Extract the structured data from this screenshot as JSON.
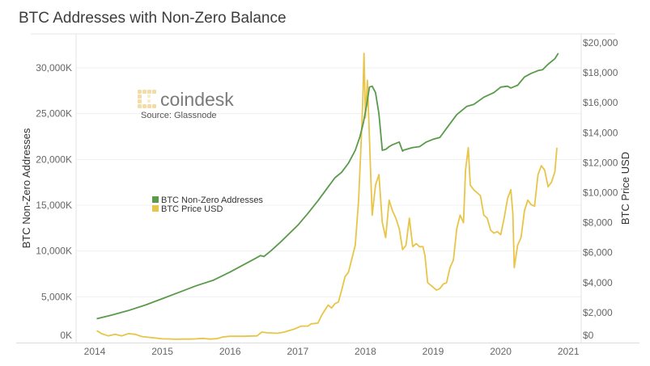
{
  "chart_data": {
    "type": "line",
    "title": "BTC Addresses with Non-Zero Balance",
    "xlabel": "",
    "ylabel": "BTC Non-Zero Addresses",
    "y2label": "BTC Price USD",
    "xlim": [
      2013.97,
      2021.2
    ],
    "ylim": [
      0,
      33500
    ],
    "y2lim": [
      0,
      21000
    ],
    "x_ticks": [
      2014,
      2015,
      2016,
      2017,
      2018,
      2019,
      2020,
      2021
    ],
    "x_tick_labels": [
      "2014",
      "2015",
      "2016",
      "2017",
      "2018",
      "2019",
      "2020",
      "2021"
    ],
    "y_ticks": [
      0,
      5000,
      10000,
      15000,
      20000,
      25000,
      30000
    ],
    "y_tick_labels": [
      "0K",
      "5,000K",
      "10,000K",
      "15,000K",
      "20,000K",
      "25,000K",
      "30,000K"
    ],
    "y2_ticks": [
      0,
      2000,
      4000,
      6000,
      8000,
      10000,
      12000,
      14000,
      16000,
      18000,
      20000
    ],
    "y2_tick_labels": [
      "$0",
      "$2,000",
      "$4,000",
      "$6,000",
      "$8,000",
      "$10,000",
      "$12,000",
      "$14,000",
      "$16,000",
      "$18,000",
      "$20,000"
    ],
    "grid": true,
    "legend": "center-left",
    "watermark": {
      "brand": "coindesk",
      "source": "Source: Glassnode"
    },
    "series": [
      {
        "name": "BTC Non-Zero Addresses",
        "axis": "left",
        "color": "#5a9a4b",
        "x": [
          2014.03,
          2014.25,
          2014.5,
          2014.75,
          2015.0,
          2015.25,
          2015.5,
          2015.75,
          2016.0,
          2016.2,
          2016.35,
          2016.45,
          2016.5,
          2016.6,
          2016.75,
          2017.0,
          2017.15,
          2017.3,
          2017.45,
          2017.55,
          2017.65,
          2017.75,
          2017.85,
          2017.92,
          2017.97,
          2018.02,
          2018.06,
          2018.1,
          2018.15,
          2018.2,
          2018.25,
          2018.3,
          2018.35,
          2018.4,
          2018.5,
          2018.55,
          2018.56,
          2018.7,
          2018.8,
          2018.9,
          2019.0,
          2019.1,
          2019.2,
          2019.35,
          2019.5,
          2019.6,
          2019.75,
          2019.9,
          2020.0,
          2020.1,
          2020.15,
          2020.25,
          2020.35,
          2020.45,
          2020.55,
          2020.62,
          2020.7,
          2020.8,
          2020.85
        ],
        "values": [
          2600,
          3000,
          3500,
          4100,
          4800,
          5500,
          6200,
          6800,
          7700,
          8500,
          9100,
          9500,
          9400,
          10000,
          11000,
          12800,
          14100,
          15500,
          17000,
          18000,
          18600,
          19600,
          21000,
          22500,
          24000,
          26000,
          27900,
          28000,
          27300,
          25000,
          21000,
          21100,
          21400,
          21600,
          21900,
          20900,
          21000,
          21300,
          21400,
          21900,
          22200,
          22400,
          23400,
          24900,
          25800,
          26000,
          26800,
          27300,
          27900,
          28000,
          27800,
          28100,
          29000,
          29400,
          29700,
          29800,
          30400,
          31000,
          31600
        ]
      },
      {
        "name": "BTC Price USD",
        "axis": "right",
        "color": "#e8c548",
        "x": [
          2014.03,
          2014.1,
          2014.2,
          2014.3,
          2014.4,
          2014.5,
          2014.6,
          2014.7,
          2014.8,
          2014.9,
          2015.0,
          2015.1,
          2015.2,
          2015.3,
          2015.4,
          2015.5,
          2015.6,
          2015.7,
          2015.8,
          2015.9,
          2016.0,
          2016.2,
          2016.4,
          2016.47,
          2016.55,
          2016.7,
          2016.8,
          2016.95,
          2017.0,
          2017.05,
          2017.15,
          2017.2,
          2017.3,
          2017.35,
          2017.45,
          2017.5,
          2017.55,
          2017.6,
          2017.65,
          2017.7,
          2017.75,
          2017.8,
          2017.85,
          2017.9,
          2017.93,
          2017.96,
          2017.98,
          2018.0,
          2018.03,
          2018.08,
          2018.1,
          2018.15,
          2018.2,
          2018.25,
          2018.3,
          2018.35,
          2018.4,
          2018.45,
          2018.5,
          2018.55,
          2018.6,
          2018.65,
          2018.7,
          2018.75,
          2018.8,
          2018.85,
          2018.88,
          2018.92,
          2019.0,
          2019.05,
          2019.1,
          2019.15,
          2019.2,
          2019.25,
          2019.3,
          2019.35,
          2019.4,
          2019.45,
          2019.48,
          2019.52,
          2019.55,
          2019.6,
          2019.65,
          2019.7,
          2019.75,
          2019.8,
          2019.85,
          2019.9,
          2019.95,
          2020.0,
          2020.05,
          2020.1,
          2020.15,
          2020.18,
          2020.2,
          2020.25,
          2020.3,
          2020.35,
          2020.4,
          2020.45,
          2020.5,
          2020.55,
          2020.6,
          2020.65,
          2020.7,
          2020.75,
          2020.8,
          2020.83
        ],
        "values": [
          800,
          600,
          450,
          550,
          450,
          600,
          550,
          400,
          350,
          300,
          250,
          240,
          220,
          230,
          230,
          250,
          280,
          230,
          260,
          380,
          420,
          420,
          450,
          700,
          650,
          620,
          700,
          900,
          1000,
          1100,
          1100,
          1250,
          1300,
          1800,
          2500,
          2300,
          2600,
          2700,
          3500,
          4400,
          4700,
          5600,
          6500,
          9500,
          12500,
          16000,
          19300,
          15000,
          17500,
          11000,
          8500,
          10500,
          11200,
          8000,
          7000,
          9500,
          8800,
          8300,
          7600,
          6200,
          6500,
          8300,
          6400,
          6600,
          6400,
          6400,
          5800,
          4000,
          3700,
          3500,
          3600,
          3900,
          4000,
          5000,
          5500,
          7600,
          8500,
          8000,
          11500,
          13000,
          10500,
          10200,
          10000,
          9800,
          8500,
          8300,
          7500,
          7300,
          7400,
          7200,
          8300,
          9600,
          10200,
          8600,
          5000,
          6500,
          7000,
          8800,
          9500,
          9200,
          9100,
          11200,
          11800,
          11500,
          10400,
          10700,
          11400,
          13000
        ]
      }
    ]
  }
}
